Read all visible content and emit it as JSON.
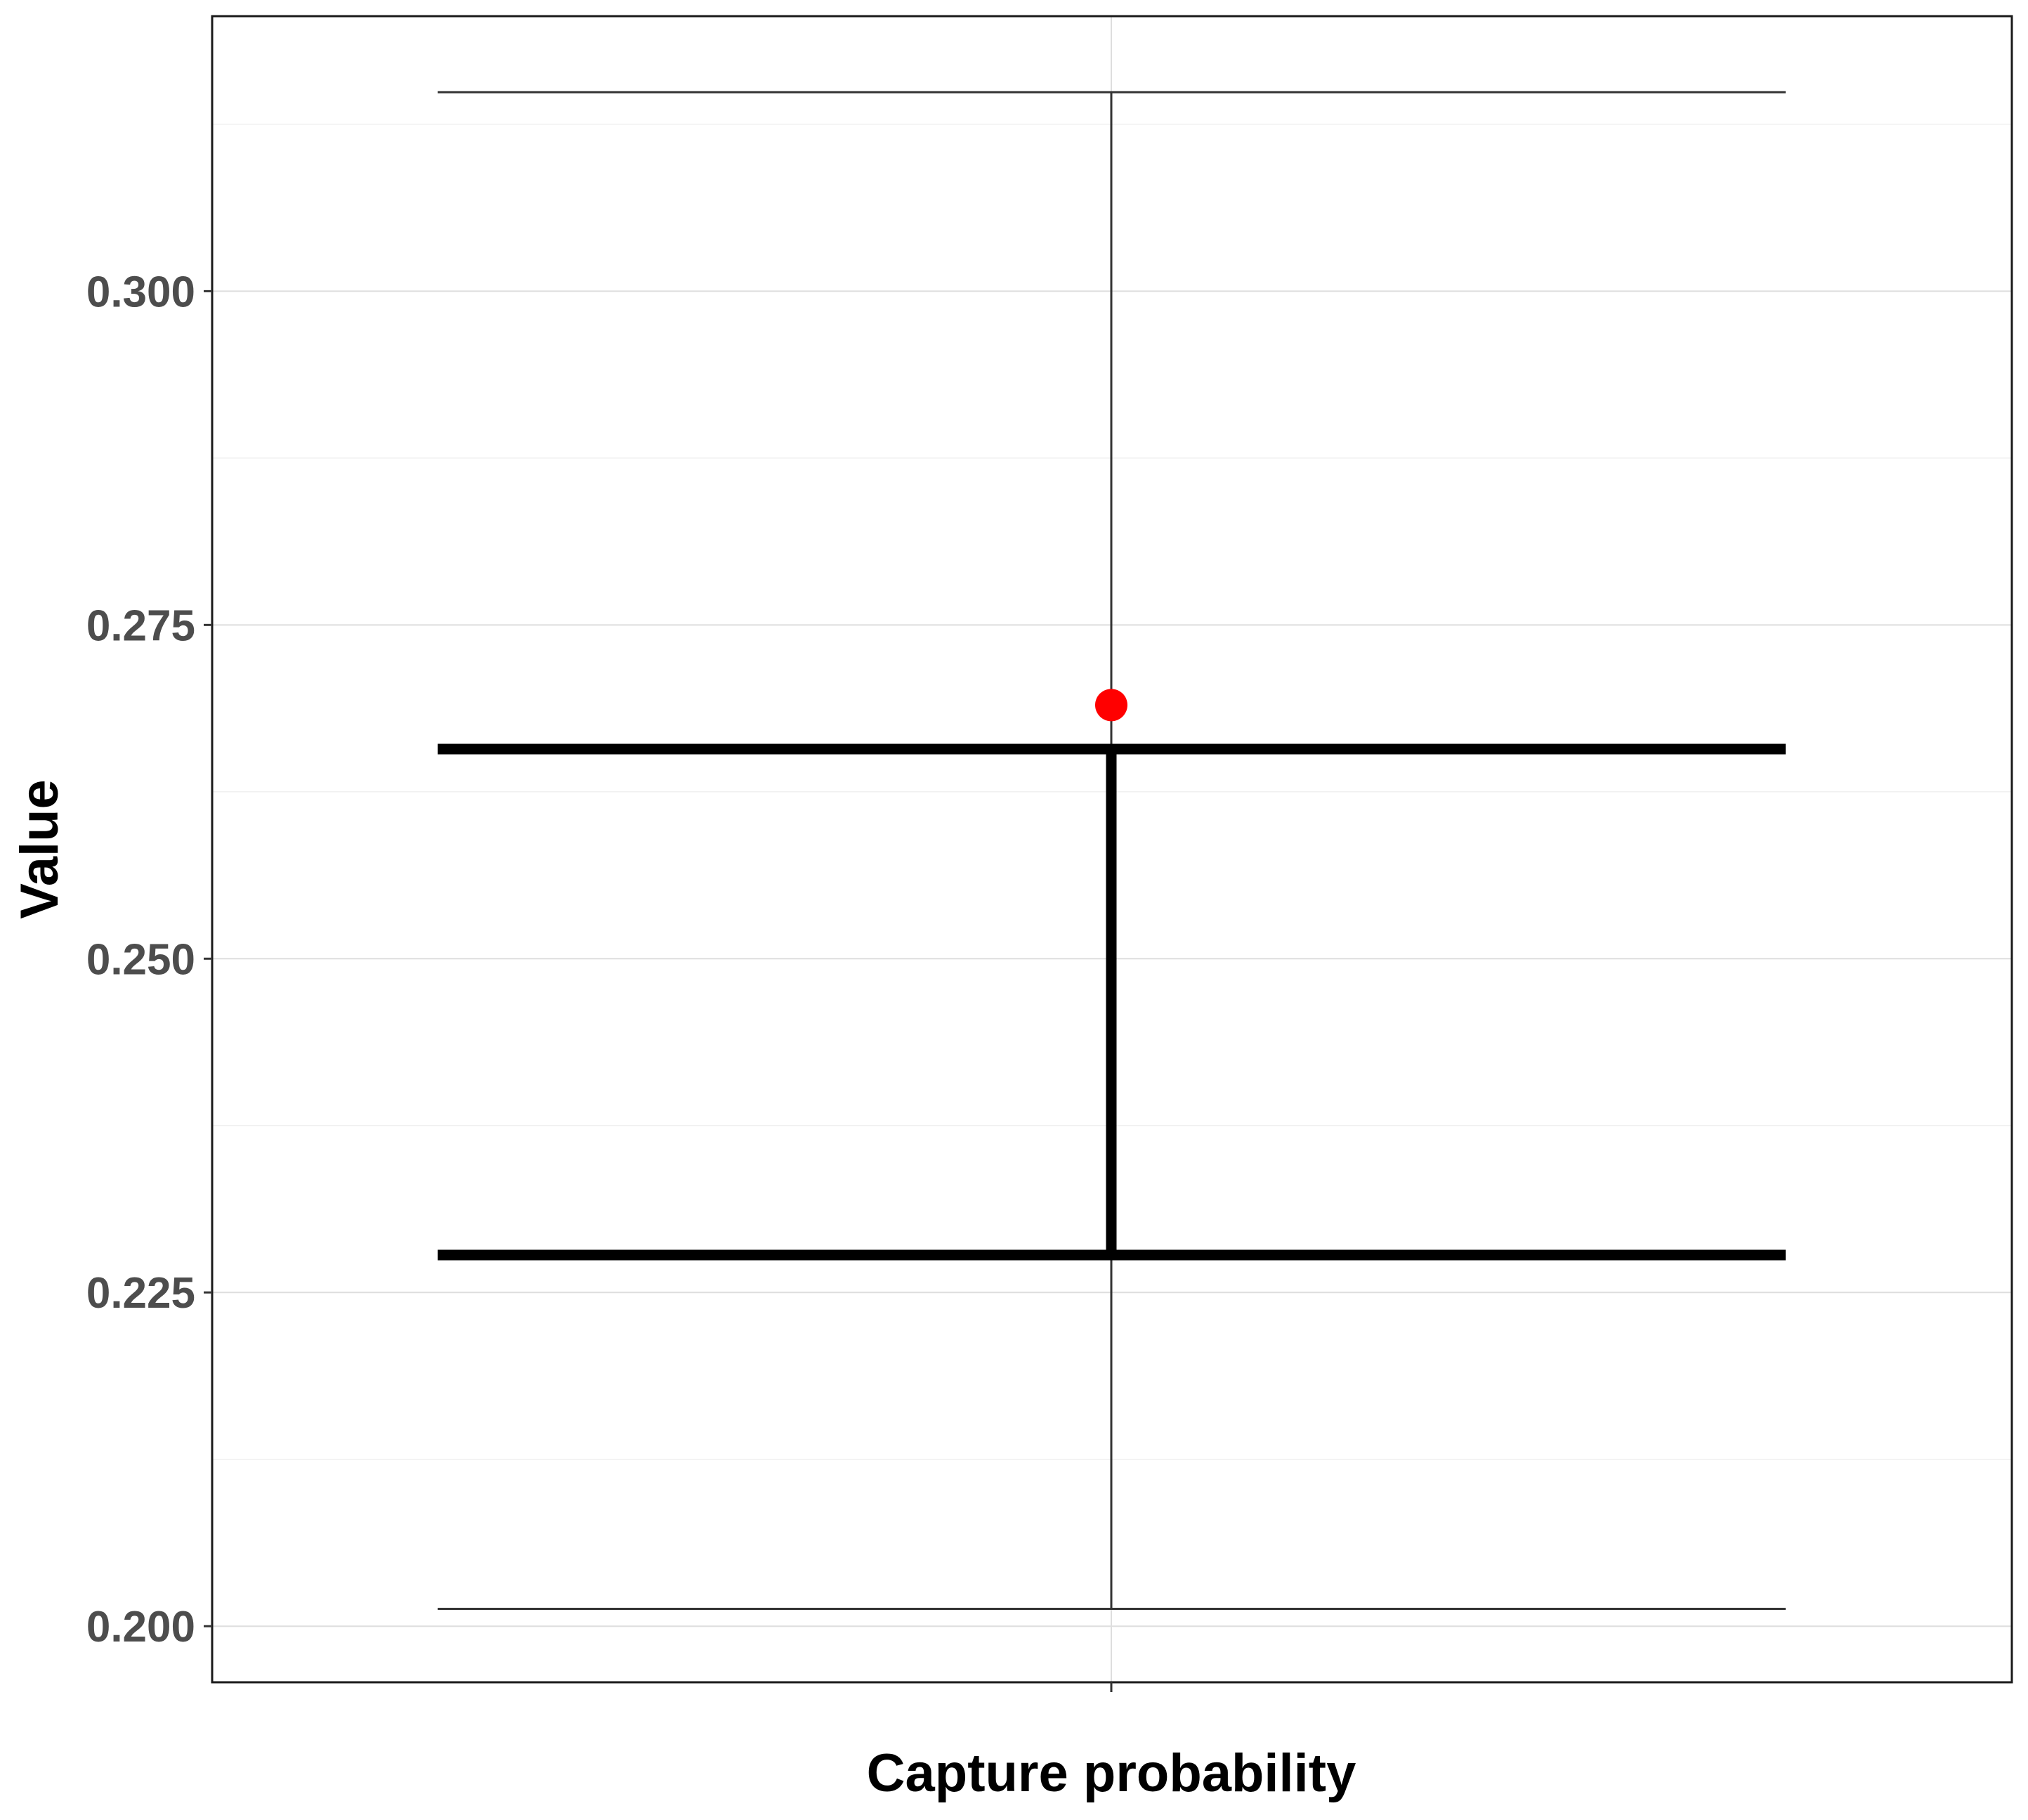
{
  "chart_data": {
    "type": "errorbar",
    "xlabel": "Capture probability",
    "ylabel": "Value",
    "ylim": [
      0.1958,
      0.3206
    ],
    "y_ticks": [
      0.2,
      0.225,
      0.25,
      0.275,
      0.3
    ],
    "y_tick_labels": [
      "0.200",
      "0.225",
      "0.250",
      "0.275",
      "0.300"
    ],
    "categories": [
      ""
    ],
    "point_estimate": 0.269,
    "inner_interval": [
      0.2278,
      0.2657
    ],
    "outer_interval": [
      0.2013,
      0.3149
    ],
    "grid": true,
    "colors": {
      "point": "#ff0000",
      "bars": "#000000",
      "outer_bars": "#333333",
      "grid": "#dedede",
      "panel_border": "#1a1a1a",
      "tick_text": "#4d4d4d"
    }
  }
}
